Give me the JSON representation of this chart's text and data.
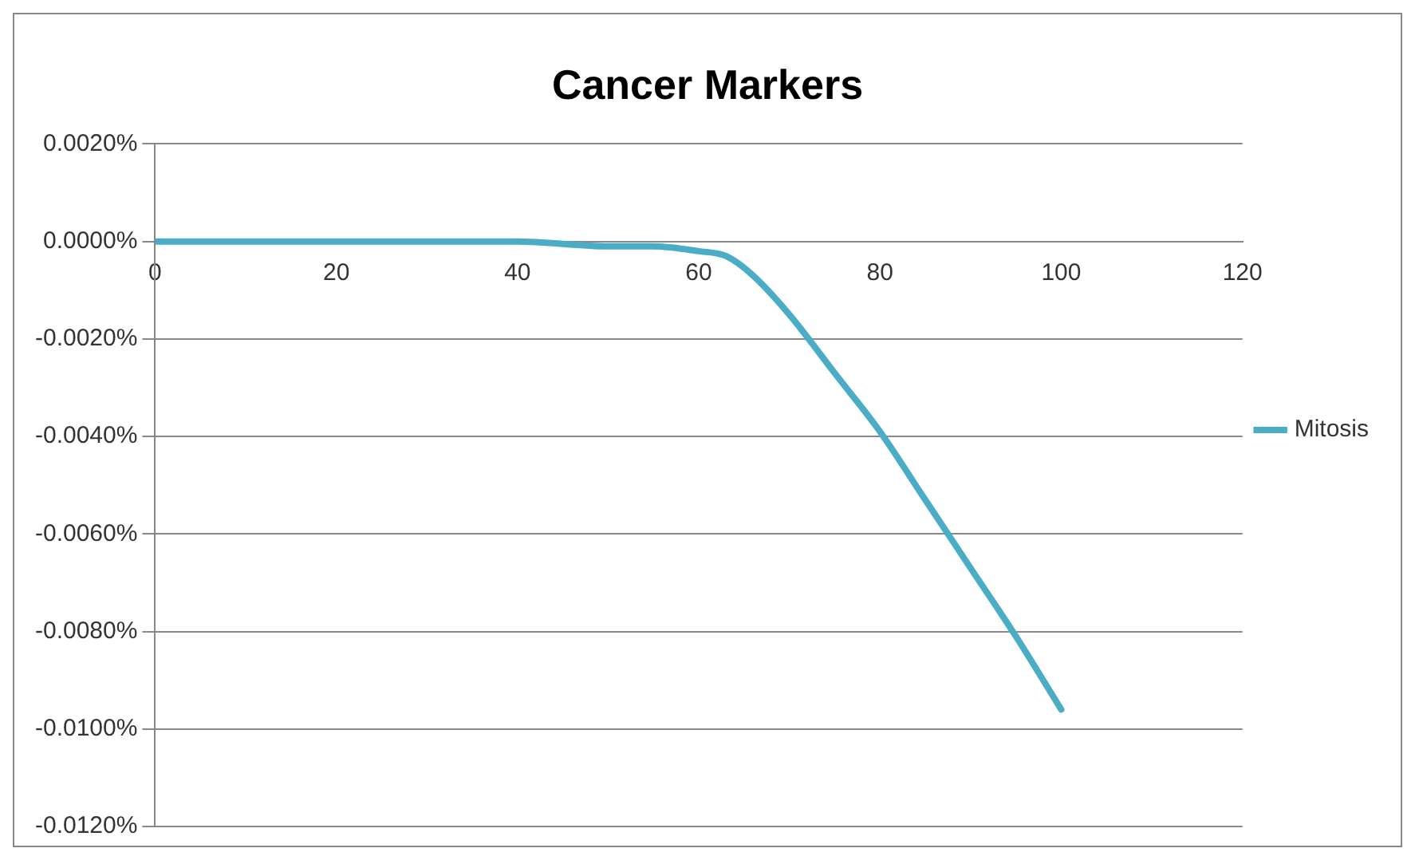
{
  "chart_data": {
    "type": "line",
    "title": "Cancer Markers",
    "x": [
      0,
      10,
      20,
      30,
      40,
      50,
      55,
      60,
      63,
      66,
      70,
      75,
      80,
      85,
      90,
      95,
      100
    ],
    "series": [
      {
        "name": "Mitosis",
        "color": "#4bacc6",
        "values": [
          0,
          0,
          0,
          0,
          0,
          -0.0001,
          -0.0001,
          -0.0002,
          -0.0003,
          -0.0007,
          -0.0015,
          -0.0027,
          -0.0039,
          -0.0053,
          -0.0067,
          -0.0081,
          -0.0096
        ]
      }
    ],
    "xlim": [
      0,
      120
    ],
    "xticks": [
      0,
      20,
      40,
      60,
      80,
      100,
      120
    ],
    "ylim": [
      -0.012,
      0.002
    ],
    "yticks": [
      {
        "value": 0.002,
        "label": "0.0020%"
      },
      {
        "value": 0,
        "label": "0.0000%"
      },
      {
        "value": -0.002,
        "label": "-0.0020%"
      },
      {
        "value": -0.004,
        "label": "-0.0040%"
      },
      {
        "value": -0.006,
        "label": "-0.0060%"
      },
      {
        "value": -0.008,
        "label": "-0.0080%"
      },
      {
        "value": -0.01,
        "label": "-0.0100%"
      },
      {
        "value": -0.012,
        "label": "-0.0120%"
      }
    ],
    "grid": "y",
    "legend": "right",
    "marker": "none",
    "line_style": "solid"
  }
}
